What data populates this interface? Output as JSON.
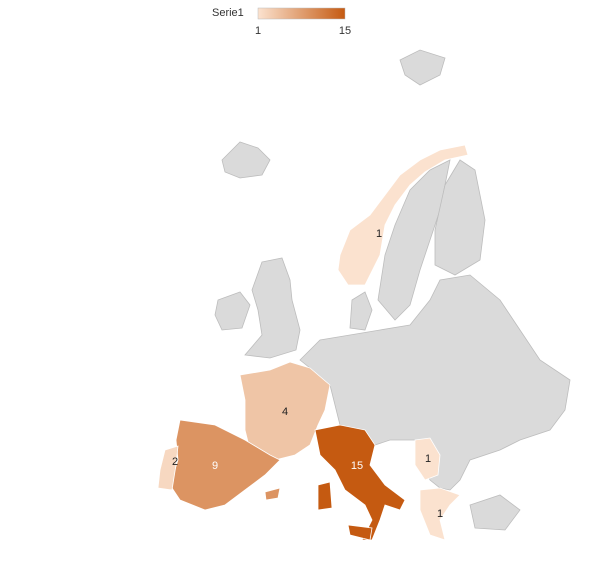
{
  "chart_data": {
    "type": "choropleth",
    "legend": {
      "title": "Serie1",
      "min": 1,
      "max": 15,
      "color_min": "#fbe2cf",
      "color_max": "#c55a11"
    },
    "no_data_color": "#dadada",
    "values": [
      1,
      4,
      9,
      2,
      15,
      1,
      1
    ]
  }
}
